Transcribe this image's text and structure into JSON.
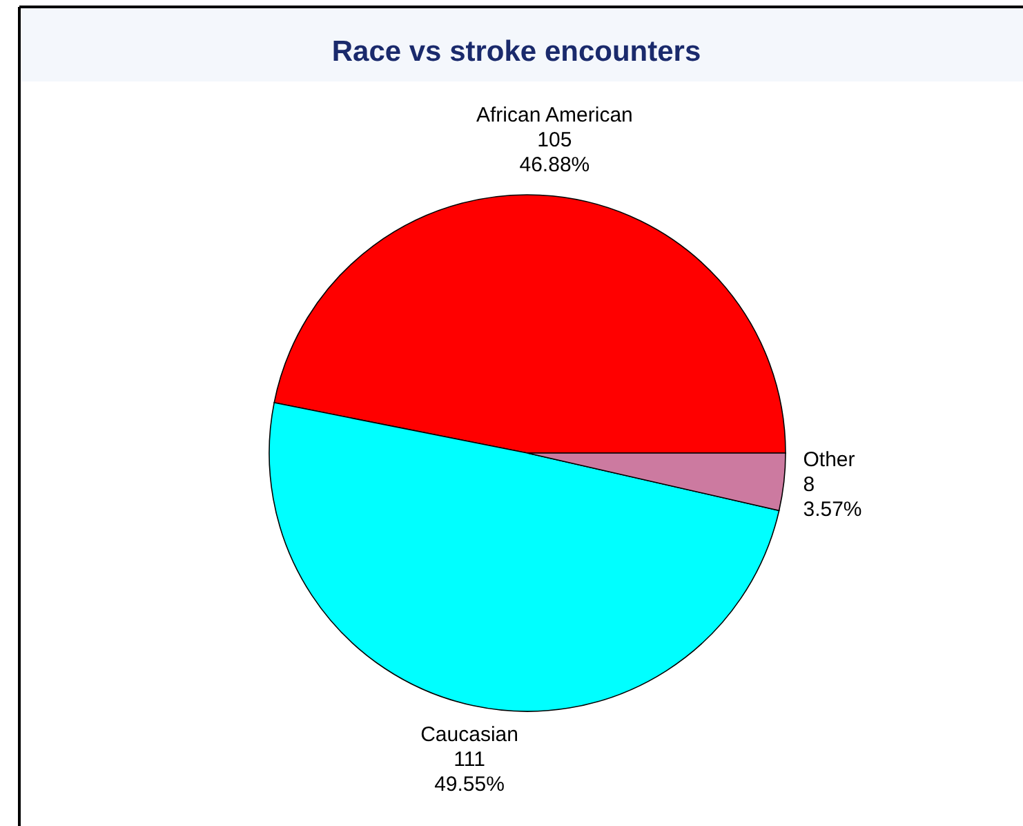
{
  "chart_data": {
    "type": "pie",
    "title": "Race vs stroke encounters",
    "categories": [
      "African American",
      "Caucasian",
      "Other"
    ],
    "values": [
      105,
      111,
      8
    ],
    "colors": [
      "#ff0000",
      "#00ffff",
      "#cc7aa0"
    ],
    "value_labels": [
      "105\n46.88%",
      "111\n49.55%",
      "8\n3.57%"
    ]
  }
}
